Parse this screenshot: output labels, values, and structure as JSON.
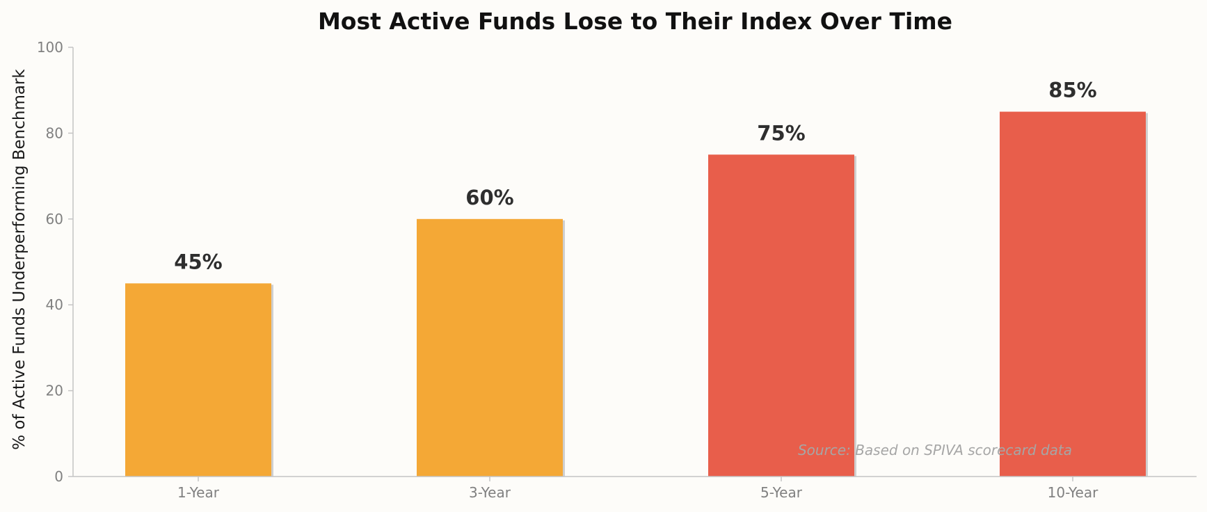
{
  "chart_data": {
    "type": "bar",
    "title": "Most Active Funds Lose to Their Index Over Time",
    "xlabel": "",
    "ylabel": "% of Active Funds Underperforming Benchmark",
    "categories": [
      "1-Year",
      "3-Year",
      "5-Year",
      "10-Year"
    ],
    "values": [
      45,
      60,
      75,
      85
    ],
    "data_labels": [
      "45%",
      "60%",
      "75%",
      "85%"
    ],
    "bar_colors": [
      "#f4a836",
      "#f4a836",
      "#e85e4b",
      "#e85e4b"
    ],
    "ylim": [
      0,
      100
    ],
    "yticks": [
      "0",
      "20",
      "40",
      "60",
      "80",
      "100"
    ],
    "grid": false,
    "legend": "none",
    "annotation": "Source: Based on SPIVA scorecard data"
  }
}
